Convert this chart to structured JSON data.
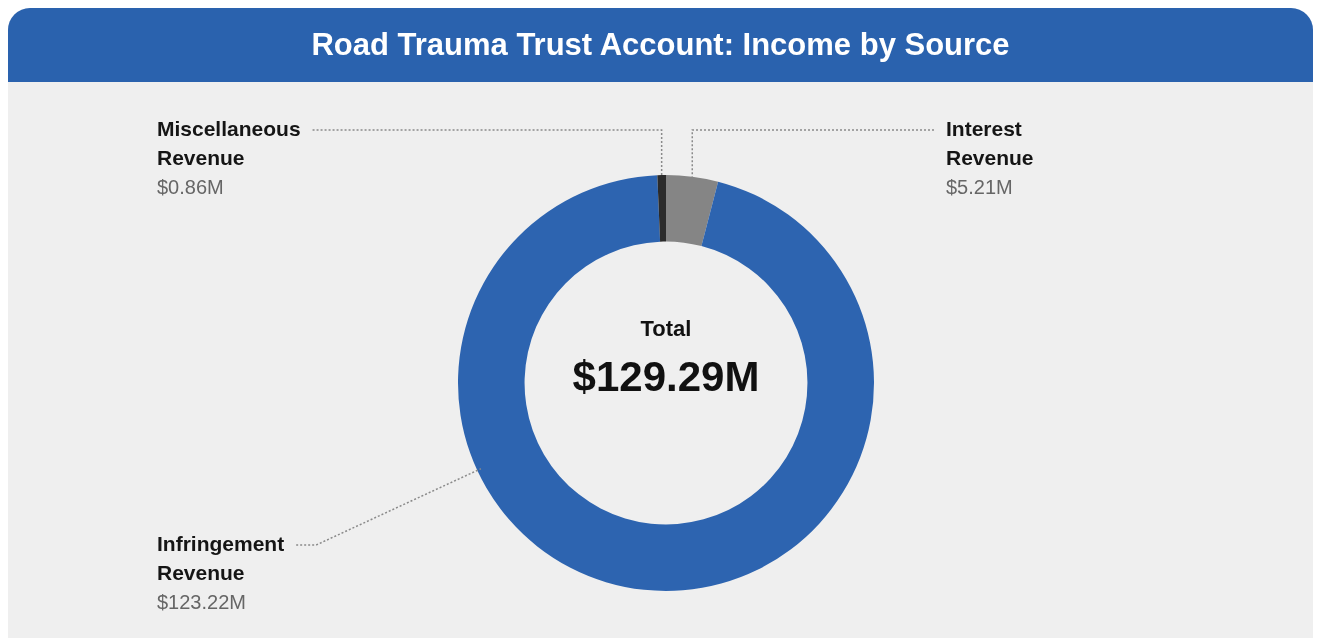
{
  "chart_data": {
    "type": "donut",
    "title": "Road Trauma Trust Account: Income by Source",
    "categories": [
      "Interest Revenue",
      "Infringement Revenue",
      "Miscellaneous Revenue"
    ],
    "values": [
      5.21,
      123.22,
      0.86
    ],
    "colors": [
      "#858585",
      "#2d64b0",
      "#2b2b2b"
    ],
    "value_labels": [
      "$5.21M",
      "$123.22M",
      "$0.86M"
    ],
    "annotations": [
      "Total",
      "$129.29M"
    ]
  }
}
